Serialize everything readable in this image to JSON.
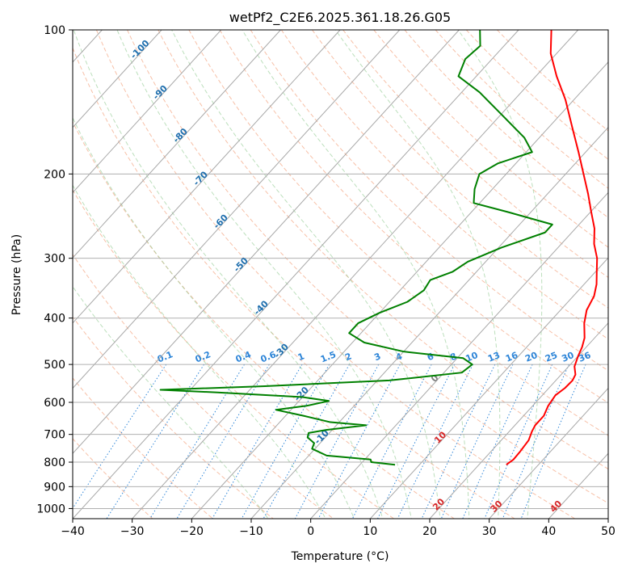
{
  "chart_data": {
    "type": "line",
    "title": "wetPf2_C2E6.2025.361.18.26.G05",
    "xlabel": "Temperature (°C)",
    "ylabel": "Pressure (hPa)",
    "xlim": [
      -40,
      50
    ],
    "ylim": [
      1050,
      100
    ],
    "y_scale": "log",
    "skew": true,
    "grid": true,
    "x_ticks": [
      -40,
      -30,
      -20,
      -10,
      0,
      10,
      20,
      30,
      40,
      50
    ],
    "x_tick_labels": [
      "−40",
      "−30",
      "−20",
      "−10",
      "0",
      "10",
      "20",
      "30",
      "40",
      "50"
    ],
    "y_ticks": [
      1000,
      900,
      800,
      700,
      600,
      500,
      400,
      300,
      200,
      100
    ],
    "y_tick_labels": [
      "1000",
      "900",
      "800",
      "700",
      "600",
      "500",
      "400",
      "300",
      "200",
      "100"
    ],
    "colors": {
      "temperature": "#ff0000",
      "dewpoint": "#008000",
      "isotherm": "#a8a8a8",
      "dry_adiabat": "#f4a582",
      "moist_adiabat": "#8fc98f",
      "mixing_ratio": "#2f86d8",
      "dry_adiabat_label": "#d62728",
      "isotherm_label": "#1f6fae"
    },
    "series": [
      {
        "key": "temperature",
        "points": [
          {
            "p": 810,
            "t": 24.6
          },
          {
            "p": 790,
            "t": 25.0
          },
          {
            "p": 760,
            "t": 24.9
          },
          {
            "p": 720,
            "t": 24.6
          },
          {
            "p": 690,
            "t": 23.8
          },
          {
            "p": 670,
            "t": 23.4
          },
          {
            "p": 640,
            "t": 23.4
          },
          {
            "p": 610,
            "t": 22.6
          },
          {
            "p": 580,
            "t": 22.2
          },
          {
            "p": 560,
            "t": 22.7
          },
          {
            "p": 540,
            "t": 22.8
          },
          {
            "p": 525,
            "t": 22.4
          },
          {
            "p": 505,
            "t": 21.0
          },
          {
            "p": 480,
            "t": 20.0
          },
          {
            "p": 460,
            "t": 19.3
          },
          {
            "p": 440,
            "t": 18.3
          },
          {
            "p": 410,
            "t": 16.0
          },
          {
            "p": 385,
            "t": 14.4
          },
          {
            "p": 360,
            "t": 13.5
          },
          {
            "p": 340,
            "t": 12.1
          },
          {
            "p": 320,
            "t": 10.2
          },
          {
            "p": 300,
            "t": 8.2
          },
          {
            "p": 280,
            "t": 5.5
          },
          {
            "p": 260,
            "t": 3.2
          },
          {
            "p": 240,
            "t": 0.1
          },
          {
            "p": 220,
            "t": -3.2
          },
          {
            "p": 200,
            "t": -7.0
          },
          {
            "p": 180,
            "t": -11.2
          },
          {
            "p": 160,
            "t": -16.0
          },
          {
            "p": 140,
            "t": -21.4
          },
          {
            "p": 125,
            "t": -26.5
          },
          {
            "p": 112,
            "t": -31.0
          },
          {
            "p": 100,
            "t": -34.5
          }
        ]
      },
      {
        "key": "dewpoint",
        "points": [
          {
            "p": 810,
            "t": 5.9
          },
          {
            "p": 800,
            "t": 1.5
          },
          {
            "p": 790,
            "t": 1.0
          },
          {
            "p": 775,
            "t": -7.0
          },
          {
            "p": 750,
            "t": -10.5
          },
          {
            "p": 730,
            "t": -11.0
          },
          {
            "p": 710,
            "t": -13.0
          },
          {
            "p": 695,
            "t": -13.5
          },
          {
            "p": 685,
            "t": -11.0
          },
          {
            "p": 670,
            "t": -5.0
          },
          {
            "p": 660,
            "t": -11.5
          },
          {
            "p": 640,
            "t": -17.0
          },
          {
            "p": 622,
            "t": -22.5
          },
          {
            "p": 610,
            "t": -18.0
          },
          {
            "p": 596,
            "t": -15.0
          },
          {
            "p": 585,
            "t": -20.0
          },
          {
            "p": 572,
            "t": -35.0
          },
          {
            "p": 565,
            "t": -45.0
          },
          {
            "p": 555,
            "t": -28.0
          },
          {
            "p": 540,
            "t": -8.0
          },
          {
            "p": 520,
            "t": 3.0
          },
          {
            "p": 500,
            "t": 3.5
          },
          {
            "p": 485,
            "t": 1.0
          },
          {
            "p": 470,
            "t": -10.0
          },
          {
            "p": 450,
            "t": -18.0
          },
          {
            "p": 430,
            "t": -22.0
          },
          {
            "p": 410,
            "t": -22.0
          },
          {
            "p": 390,
            "t": -20.0
          },
          {
            "p": 370,
            "t": -17.0
          },
          {
            "p": 350,
            "t": -16.0
          },
          {
            "p": 333,
            "t": -16.5
          },
          {
            "p": 320,
            "t": -14.0
          },
          {
            "p": 305,
            "t": -13.0
          },
          {
            "p": 285,
            "t": -9.5
          },
          {
            "p": 265,
            "t": -4.5
          },
          {
            "p": 255,
            "t": -4.5
          },
          {
            "p": 240,
            "t": -14.0
          },
          {
            "p": 230,
            "t": -21.0
          },
          {
            "p": 215,
            "t": -23.0
          },
          {
            "p": 200,
            "t": -24.5
          },
          {
            "p": 190,
            "t": -23.0
          },
          {
            "p": 180,
            "t": -19.0
          },
          {
            "p": 168,
            "t": -22.5
          },
          {
            "p": 150,
            "t": -30.0
          },
          {
            "p": 135,
            "t": -37.0
          },
          {
            "p": 125,
            "t": -43.0
          },
          {
            "p": 115,
            "t": -44.5
          },
          {
            "p": 108,
            "t": -44.0
          },
          {
            "p": 100,
            "t": -46.5
          }
        ]
      }
    ],
    "isotherms": [
      -100,
      -90,
      -80,
      -70,
      -60,
      -50,
      -40,
      -30,
      -20,
      -10,
      0,
      10,
      20,
      30,
      40,
      50
    ],
    "isotherm_labels": [
      {
        "t": -100,
        "text": "-100"
      },
      {
        "t": -90,
        "text": "-90"
      },
      {
        "t": -80,
        "text": "-80"
      },
      {
        "t": -70,
        "text": "-70"
      },
      {
        "t": -60,
        "text": "-60"
      },
      {
        "t": -50,
        "text": "-50"
      },
      {
        "t": -40,
        "text": "-40"
      },
      {
        "t": -30,
        "text": "-30"
      },
      {
        "t": -20,
        "text": "-20"
      },
      {
        "t": -10,
        "text": "-10"
      },
      {
        "t": 0,
        "text": "0"
      },
      {
        "t": 10,
        "text": "10"
      },
      {
        "t": 20,
        "text": "20"
      },
      {
        "t": 30,
        "text": "30"
      },
      {
        "t": 40,
        "text": "40"
      }
    ],
    "dry_adiabats": [
      -30,
      -20,
      -10,
      0,
      10,
      20,
      30,
      40,
      50,
      60,
      70,
      80,
      90,
      100,
      110,
      120,
      130,
      140,
      150,
      160,
      170
    ],
    "moist_adiabats": [
      -10,
      0,
      5,
      10,
      15,
      20,
      25,
      30,
      35
    ],
    "mixing_ratios": [
      "0.1",
      "0.2",
      "0.4",
      "0.6",
      "1",
      "1.5",
      "2",
      "3",
      "4",
      "6",
      "8",
      "10",
      "13",
      "16",
      "20",
      "25",
      "30",
      "36"
    ]
  }
}
